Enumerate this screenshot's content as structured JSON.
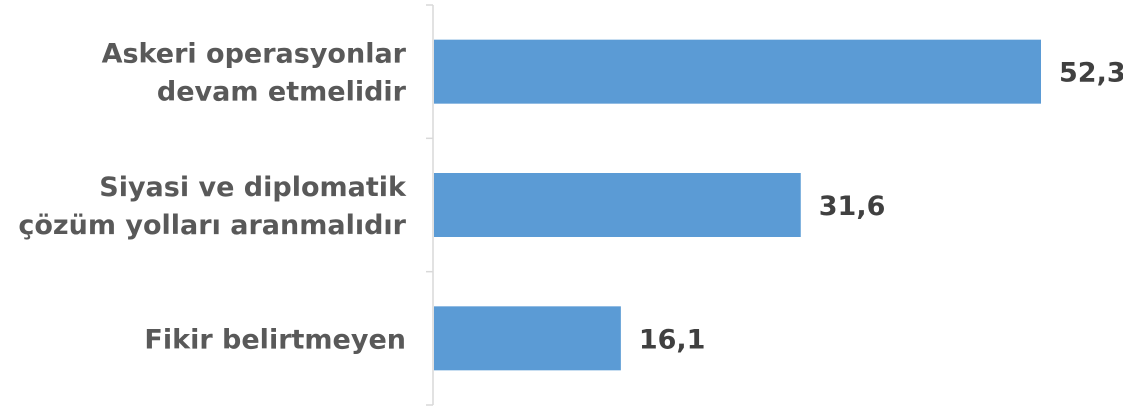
{
  "chart_data": {
    "type": "bar",
    "orientation": "horizontal",
    "categories": [
      [
        "Askeri operasyonlar",
        "devam etmelidir"
      ],
      [
        "Siyasi ve diplomatik",
        "çözüm yolları aranmalıdır"
      ],
      [
        "Fikir belirtmeyen"
      ]
    ],
    "values": [
      52.3,
      31.6,
      16.1
    ],
    "value_labels": [
      "52,3",
      "31,6",
      "16,1"
    ],
    "xlim": [
      0,
      52.3
    ],
    "grid": false,
    "legend": "none",
    "colors": {
      "bar": "#5b9bd5",
      "axis": "#d9d9d9",
      "category_text": "#595959",
      "value_text": "#404040"
    }
  }
}
